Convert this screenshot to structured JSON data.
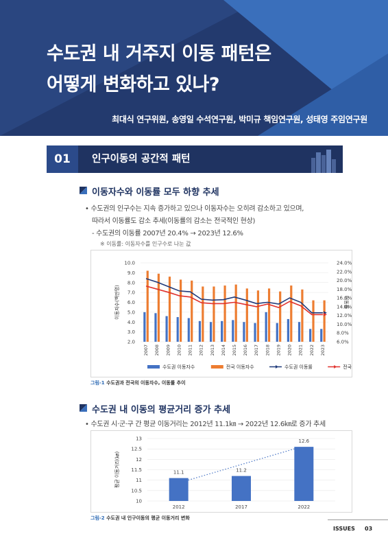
{
  "header": {
    "title_line1": "수도권 내 거주지 이동 패턴은",
    "title_line2": "어떻게 변화하고 있나?",
    "authors": "최대식 연구위원, 송영일 수석연구원, 박미규 책임연구원, 성태영 주임연구원"
  },
  "section": {
    "number": "01",
    "title": "인구이동의 공간적 패턴"
  },
  "sub1": {
    "title": "이동자수와 이동률 모두 하향 추세",
    "bullet1_line1": "• 수도권의 인구수는 지속 증가하고 있으나 이동자수는 오히려 감소하고 있으며,",
    "bullet1_line2": "따라서 이동률도 감소 추세(이동률의 감소는 전국적인 현상)",
    "dash_item": "- 수도권의 이동률 2007년 20.4% → 2023년 12.6%",
    "note": "※ 이동률: 이동자수를 인구수로 나눈 값"
  },
  "figure1": {
    "caption_label": "그림-1",
    "caption_text": "수도권과 전국의 이동자수, 이동률 추이"
  },
  "sub2": {
    "title": "수도권 내 이동의 평균거리 증가 추세",
    "bullet": "• 수도권 시·군·구 간 평균 이동거리는 2012년 11.1㎞ → 2022년 12.6㎞로 증가 추세"
  },
  "figure2": {
    "caption_label": "그림-2",
    "caption_text": "수도권 내 인구이동의 평균 이동거리 변화"
  },
  "footer": {
    "issues": "ISSUES",
    "page": "03"
  },
  "chart_data": [
    {
      "type": "bar",
      "title": "",
      "ylabel": "이동자수(백만명)",
      "y2label": "이동률",
      "ylim": [
        2.0,
        10.0
      ],
      "y2lim": [
        6.0,
        24.0
      ],
      "y_ticks": [
        "10.0",
        "9.0",
        "8.0",
        "7.0",
        "6.0",
        "5.0",
        "4.0",
        "3.0",
        "2.0"
      ],
      "y2_ticks": [
        "24.0%",
        "22.0%",
        "20.0%",
        "18.0%",
        "16.0%",
        "14.0%",
        "12.0%",
        "10.0%",
        "8.0%",
        "6.0%"
      ],
      "categories": [
        "2007",
        "2008",
        "2009",
        "2010",
        "2011",
        "2012",
        "2013",
        "2014",
        "2015",
        "2016",
        "2017",
        "2018",
        "2019",
        "2020",
        "2021",
        "2022",
        "2023"
      ],
      "series": [
        {
          "name": "수도권 이동자수",
          "kind": "bar",
          "color": "#4472c4",
          "values": [
            5.0,
            4.9,
            4.6,
            4.5,
            4.4,
            4.1,
            4.0,
            4.1,
            4.2,
            4.0,
            3.9,
            5.0,
            3.9,
            4.3,
            4.0,
            3.3,
            3.3
          ]
        },
        {
          "name": "전국 이동자수",
          "kind": "bar",
          "color": "#ed7d31",
          "values": [
            9.2,
            8.9,
            8.6,
            8.3,
            8.2,
            7.6,
            7.6,
            7.7,
            7.8,
            7.4,
            7.2,
            7.4,
            7.1,
            7.7,
            7.3,
            6.2,
            6.2
          ]
        },
        {
          "name": "수도권 이동률",
          "kind": "line",
          "axis": "right",
          "color": "#1f3a7a",
          "values": [
            20.4,
            19.6,
            18.6,
            17.6,
            17.4,
            15.7,
            15.5,
            15.6,
            16.2,
            15.5,
            14.7,
            15.0,
            14.6,
            16.0,
            15.0,
            12.6,
            12.6
          ]
        },
        {
          "name": "전국 이동률",
          "kind": "line",
          "axis": "right",
          "color": "#e0312c",
          "values": [
            18.7,
            18.0,
            17.3,
            16.5,
            16.2,
            14.9,
            14.7,
            14.7,
            15.0,
            14.5,
            14.0,
            14.6,
            13.8,
            15.2,
            14.2,
            12.2,
            12.2
          ]
        }
      ],
      "legend": "bottom"
    },
    {
      "type": "bar",
      "title": "",
      "ylabel": "평균 이동거리(㎞)",
      "ylim": [
        10,
        13
      ],
      "y_ticks": [
        "13",
        "12.5",
        "12",
        "11.5",
        "11",
        "10.5",
        "10"
      ],
      "categories": [
        "2012",
        "2017",
        "2022"
      ],
      "series": [
        {
          "name": "",
          "color": "#4472c4",
          "values": [
            11.1,
            11.2,
            12.6
          ]
        }
      ],
      "data_labels": [
        "11.1",
        "11.2",
        "12.6"
      ],
      "trendline": "dotted"
    }
  ]
}
